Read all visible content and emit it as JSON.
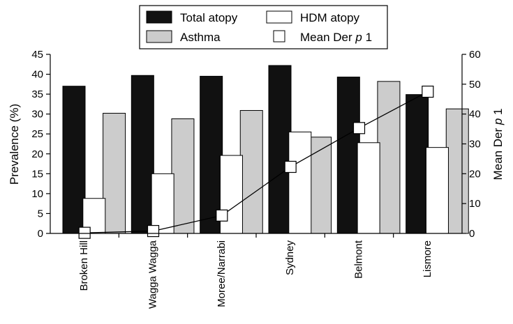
{
  "chart_data": {
    "type": "bar",
    "categories": [
      "Broken Hill",
      "Wagga Wagga",
      "Moree/Narrabi",
      "Sydney",
      "Belmont",
      "Lismore"
    ],
    "series": [
      {
        "name": "Total atopy",
        "axis": "left",
        "kind": "bar",
        "color": "#111111",
        "values": [
          37.0,
          39.7,
          39.5,
          42.2,
          39.3,
          34.9
        ]
      },
      {
        "name": "HDM atopy",
        "axis": "left",
        "kind": "bar",
        "color": "#ffffff",
        "values": [
          8.8,
          15.0,
          19.6,
          25.5,
          22.8,
          21.6
        ]
      },
      {
        "name": "Asthma",
        "axis": "left",
        "kind": "bar",
        "color": "#cccccc",
        "values": [
          30.2,
          28.8,
          30.9,
          24.2,
          38.2,
          31.3
        ]
      },
      {
        "name": "Mean Der p 1",
        "axis": "right",
        "kind": "line",
        "color": "#000000",
        "values": [
          0.2,
          0.8,
          6.0,
          22.3,
          35.3,
          47.5
        ]
      }
    ],
    "ylabel": "Prevalence (%)",
    "ylabel_right": "Mean Der p 1",
    "ylim": [
      0,
      45
    ],
    "yticks": [
      0,
      5,
      10,
      15,
      20,
      25,
      30,
      35,
      40,
      45
    ],
    "ylim_right": [
      0,
      60
    ],
    "yticks_right": [
      0,
      10,
      20,
      30,
      40,
      50,
      60
    ],
    "legend": {
      "placement": "top-center",
      "items": [
        {
          "label": "Total atopy",
          "swatch": "dark"
        },
        {
          "label": "HDM atopy",
          "swatch": "white"
        },
        {
          "label": "Asthma",
          "swatch": "grey"
        },
        {
          "label": "Mean Der p 1",
          "swatch": "marker"
        }
      ]
    },
    "grid": false
  }
}
